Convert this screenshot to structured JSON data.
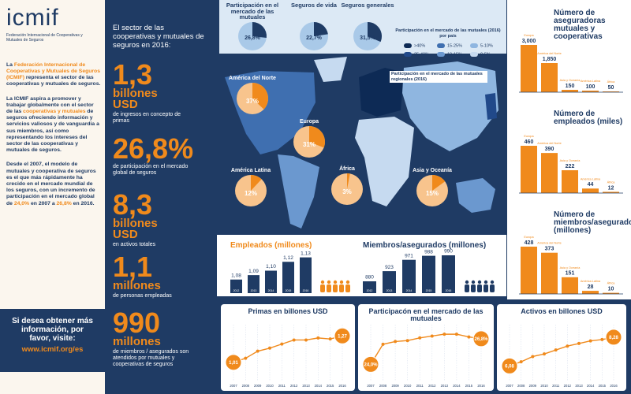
{
  "header": {
    "logo": "icmif",
    "subtitle": "Federación Internacional de Cooperativas y Mutuales de Seguros"
  },
  "intro": [
    [
      "La ",
      "Federación Internacional de Cooperativas y Mutuales de Seguros (ICMIF)",
      " representa el sector de las cooperativas y mutuales de seguros."
    ],
    [
      "La ICMIF aspira a promover y trabajar globalmente con el sector de las ",
      "cooperativas y mutuales",
      " de seguros ofreciendo información y servicios valiosos y de vanguardia a sus miembros, así como representando los intereses del sector de las cooperativas y mutuales de seguros."
    ],
    [
      "Desde el 2007, el modelo de mutuales y cooperativa de seguros es el que más rápidamente ha crecido en el mercado mundial de los seguros, con un incremento de participación en el mercado global de ",
      "24,0%",
      " en 2007 a ",
      "26,8%",
      " en 2016."
    ]
  ],
  "contact": {
    "text": "Si desea obtener más información, por favor, visite:",
    "link": "www.icmif.org/es"
  },
  "stats_heading": "El sector de las cooperativas y mutuales de seguros en 2016:",
  "stats": [
    {
      "value": "1,3",
      "unit": "billones USD",
      "desc": "de ingresos en concepto de primas"
    },
    {
      "value": "26,8%",
      "desc": "de participación en el mercado global de seguros"
    },
    {
      "value": "8,3",
      "unit": "billones USD",
      "desc": "en activos totales"
    },
    {
      "value": "1,1",
      "unit": "millones",
      "desc": "de personas empleadas"
    },
    {
      "value": "990",
      "unit": "millones",
      "desc": "de miembros / asegurados son atendidos por mutuales y cooperativas de seguros"
    }
  ],
  "map": {
    "title": "Participación en el mercado de las mutuales (2016) por país",
    "legend": [
      {
        "label": ">40%",
        "color": "#0d2a55"
      },
      {
        "label": "15-25%",
        "color": "#3f6fb0"
      },
      {
        "label": "5-10%",
        "color": "#8fb6e0"
      },
      {
        "label": "25-40%",
        "color": "#21498a"
      },
      {
        "label": "10-15%",
        "color": "#6b98cf"
      },
      {
        "label": "0-5%",
        "color": "#c6daf0"
      }
    ]
  },
  "chart_data": [
    {
      "type": "pie",
      "categories": [
        "Participación en el mercado de las mutuales",
        "Seguros de vida",
        "Seguros generales"
      ],
      "values": [
        26.8,
        22.7,
        31.5
      ],
      "value_labels": [
        "26,8%",
        "22,7%",
        "31,5%"
      ],
      "color": "#1f3b64"
    },
    {
      "type": "pie",
      "title": "Participación en el mercado de las mutuales regionales (2016)",
      "categories": [
        "América del Norte",
        "Europa",
        "América Latina",
        "África",
        "Asia y Oceanía"
      ],
      "values": [
        37,
        31,
        12,
        3,
        15
      ],
      "value_labels": [
        "37%",
        "31%",
        "12%",
        "3%",
        "15%"
      ],
      "color": "#f08a1c"
    },
    {
      "type": "bar",
      "title": "Empleados (millones)",
      "categories": [
        "2012",
        "2013",
        "2014",
        "2015",
        "2016"
      ],
      "values": [
        1.08,
        1.09,
        1.1,
        1.12,
        1.13
      ],
      "value_labels": [
        "1,08",
        "1,09",
        "1,10",
        "1,12",
        "1,13"
      ],
      "color": "#1f3b64",
      "ylim": [
        1.06,
        1.14
      ]
    },
    {
      "type": "bar",
      "title": "Miembros/asegurados (millones)",
      "categories": [
        "2012",
        "2013",
        "2014",
        "2015",
        "2016"
      ],
      "values": [
        880,
        923,
        971,
        988,
        990
      ],
      "color": "#1f3b64",
      "ylim": [
        850,
        1000
      ]
    },
    {
      "type": "line",
      "title": "Primas en billones USD",
      "categories": [
        "2007",
        "2008",
        "2009",
        "2010",
        "2011",
        "2012",
        "2013",
        "2014",
        "2015",
        "2016"
      ],
      "values": [
        1.01,
        1.05,
        1.12,
        1.15,
        1.19,
        1.23,
        1.23,
        1.25,
        1.24,
        1.27
      ],
      "value_labels": [
        "1,01",
        null,
        null,
        null,
        null,
        null,
        null,
        null,
        null,
        "1,27"
      ],
      "color": "#f08a1c",
      "ylim": [
        0.9,
        1.35
      ]
    },
    {
      "type": "line",
      "title": "Participacón en el mercado de las mutuales",
      "categories": [
        "2007",
        "2008",
        "2009",
        "2010",
        "2011",
        "2012",
        "2013",
        "2014",
        "2015",
        "2016"
      ],
      "values": [
        24.0,
        26.2,
        26.5,
        26.6,
        26.9,
        27.1,
        27.3,
        27.3,
        27.0,
        26.8
      ],
      "value_labels": [
        "24,0%",
        null,
        null,
        null,
        null,
        null,
        null,
        null,
        null,
        "26,8%"
      ],
      "color": "#f08a1c",
      "ylim": [
        23,
        28
      ]
    },
    {
      "type": "line",
      "title": "Activos en billones USD",
      "categories": [
        "2007",
        "2008",
        "2009",
        "2010",
        "2011",
        "2012",
        "2013",
        "2014",
        "2015",
        "2016"
      ],
      "values": [
        6.08,
        6.4,
        6.8,
        7.0,
        7.3,
        7.6,
        7.8,
        8.0,
        8.1,
        8.28
      ],
      "value_labels": [
        "6,08",
        null,
        null,
        null,
        null,
        null,
        null,
        null,
        null,
        "8,28"
      ],
      "color": "#f08a1c",
      "ylim": [
        5.5,
        9
      ]
    },
    {
      "type": "bar",
      "title": "Número de aseguradoras mutuales y cooperativas",
      "categories": [
        "Europa",
        "América del Norte",
        "Asia y Oceanía",
        "América Latina",
        "África"
      ],
      "values": [
        3000,
        1850,
        150,
        100,
        50
      ],
      "value_labels": [
        "3,000",
        "1,850",
        "150",
        "100",
        "50"
      ],
      "color": "#f08a1c",
      "ylim": [
        0,
        3000
      ]
    },
    {
      "type": "bar",
      "title": "Número de empleados (miles)",
      "categories": [
        "Europa",
        "América del Norte",
        "Asia y Oceanía",
        "América Latina",
        "África"
      ],
      "values": [
        460,
        390,
        222,
        44,
        12
      ],
      "color": "#f08a1c",
      "ylim": [
        0,
        460
      ]
    },
    {
      "type": "bar",
      "title": "Número de miembros/asegurados (millones)",
      "categories": [
        "Europa",
        "América del Norte",
        "Asia y Oceanía",
        "América Latina",
        "África"
      ],
      "values": [
        428,
        373,
        151,
        28,
        10
      ],
      "color": "#f08a1c",
      "ylim": [
        0,
        428
      ]
    }
  ]
}
